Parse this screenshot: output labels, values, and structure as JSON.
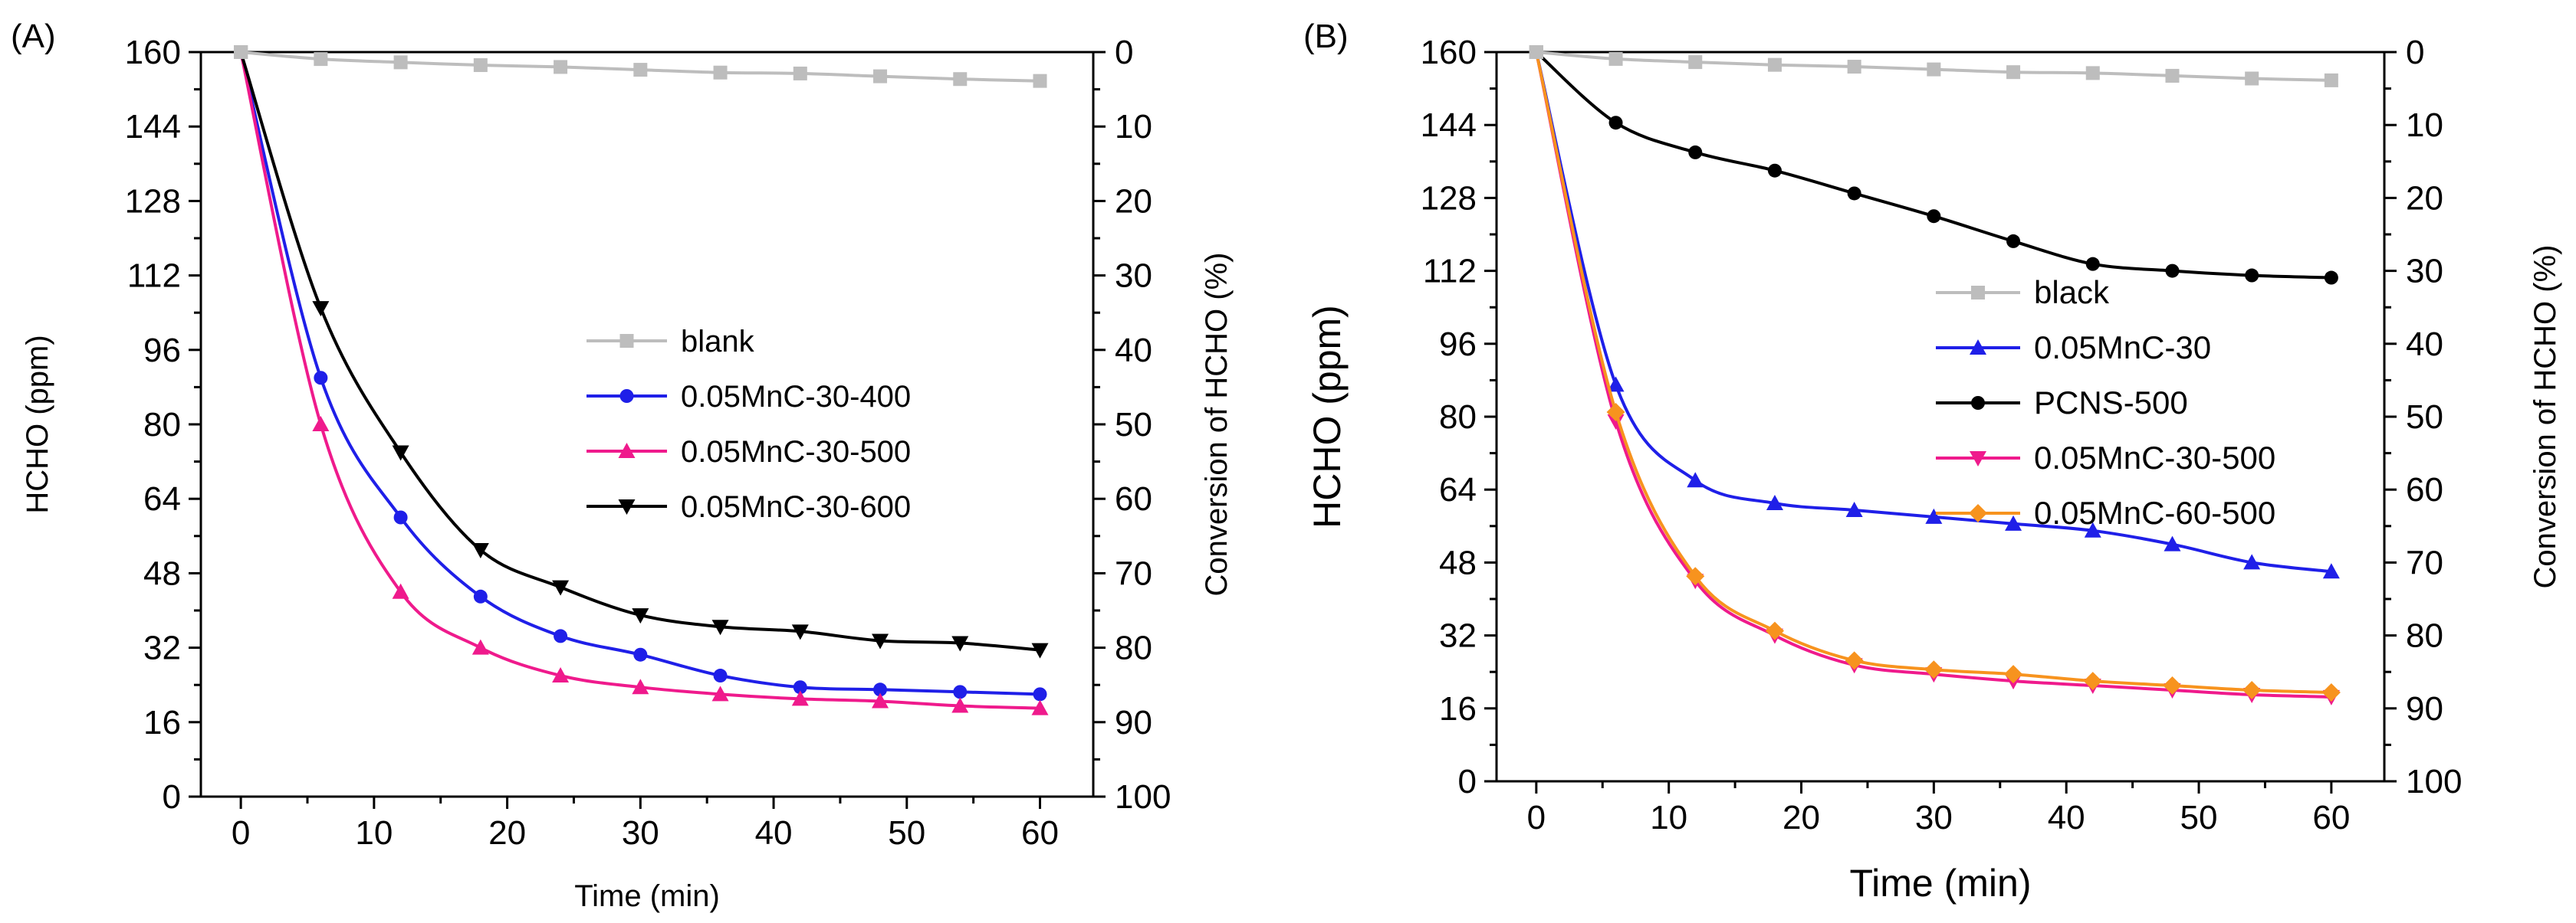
{
  "chart_data": [
    {
      "panel_label": "(A)",
      "type": "line",
      "xlabel": "Time (min)",
      "ylabel": "HCHO (ppm)",
      "y2label": "Conversion of HCHO (%)",
      "xlim": [
        -3,
        64
      ],
      "ylim": [
        0,
        160
      ],
      "y2lim": [
        100,
        0
      ],
      "xticks": [
        0,
        10,
        20,
        30,
        40,
        50,
        60
      ],
      "yticks": [
        0,
        16,
        32,
        48,
        64,
        80,
        96,
        112,
        128,
        144,
        160
      ],
      "y2ticks": [
        0,
        10,
        20,
        30,
        40,
        50,
        60,
        70,
        80,
        90,
        100
      ],
      "legend_position": "center-right",
      "series": [
        {
          "name": "blank",
          "color": "#bdbdbd",
          "marker": "square",
          "x": [
            0,
            6,
            12,
            18,
            24,
            30,
            36,
            42,
            48,
            54,
            60
          ],
          "y": [
            160,
            158.5,
            157.8,
            157.2,
            156.8,
            156.2,
            155.6,
            155.4,
            154.8,
            154.2,
            153.8
          ]
        },
        {
          "name": "0.05MnC-30-400",
          "color": "#1f1fe8",
          "marker": "circle",
          "x": [
            0,
            6,
            12,
            18,
            24,
            30,
            36,
            42,
            48,
            54,
            60
          ],
          "y": [
            160,
            90,
            60,
            43,
            34.5,
            30.5,
            26,
            23.5,
            23,
            22.5,
            22
          ]
        },
        {
          "name": "0.05MnC-30-500",
          "color": "#ef1a8c",
          "marker": "triangle-up",
          "x": [
            0,
            6,
            12,
            18,
            24,
            30,
            36,
            42,
            48,
            54,
            60
          ],
          "y": [
            160,
            80,
            44,
            32,
            26,
            23.5,
            22,
            21,
            20.5,
            19.5,
            19
          ]
        },
        {
          "name": "0.05MnC-30-600",
          "color": "#000000",
          "marker": "triangle-down",
          "x": [
            0,
            6,
            12,
            18,
            24,
            30,
            36,
            42,
            48,
            54,
            60
          ],
          "y": [
            160,
            105,
            74,
            53,
            45,
            39,
            36.5,
            35.5,
            33.5,
            33,
            31.5
          ]
        }
      ]
    },
    {
      "panel_label": "(B)",
      "type": "line",
      "xlabel": "Time (min)",
      "ylabel": "HCHO (ppm)",
      "y2label": "Conversion of HCHO (%)",
      "xlim": [
        -3,
        64
      ],
      "ylim": [
        0,
        160
      ],
      "y2lim": [
        100,
        0
      ],
      "xticks": [
        0,
        10,
        20,
        30,
        40,
        50,
        60
      ],
      "yticks": [
        0,
        16,
        32,
        48,
        64,
        80,
        96,
        112,
        128,
        144,
        160
      ],
      "y2ticks": [
        0,
        10,
        20,
        30,
        40,
        50,
        60,
        70,
        80,
        90,
        100
      ],
      "legend_position": "center",
      "series": [
        {
          "name": "black",
          "color": "#bdbdbd",
          "marker": "square",
          "x": [
            0,
            6,
            12,
            18,
            24,
            30,
            36,
            42,
            48,
            54,
            60
          ],
          "y": [
            160,
            158.5,
            157.8,
            157.2,
            156.8,
            156.2,
            155.6,
            155.4,
            154.8,
            154.2,
            153.8
          ]
        },
        {
          "name": "0.05MnC-30",
          "color": "#1f1fe8",
          "marker": "triangle-up",
          "x": [
            0,
            6,
            12,
            18,
            24,
            30,
            36,
            42,
            48,
            54,
            60
          ],
          "y": [
            160,
            87,
            66,
            61,
            59.5,
            58,
            56.5,
            55,
            52,
            48,
            46
          ]
        },
        {
          "name": "PCNS-500",
          "color": "#000000",
          "marker": "circle",
          "x": [
            0,
            6,
            12,
            18,
            24,
            30,
            36,
            42,
            48,
            54,
            60
          ],
          "y": [
            160,
            144.5,
            138,
            134,
            129,
            124,
            118.5,
            113.5,
            112,
            111,
            110.5
          ]
        },
        {
          "name": "0.05MnC-30-500",
          "color": "#ef1a8c",
          "marker": "triangle-down",
          "x": [
            0,
            6,
            12,
            18,
            24,
            30,
            36,
            42,
            48,
            54,
            60
          ],
          "y": [
            160,
            79,
            44,
            32,
            25.5,
            23.5,
            22,
            21,
            20,
            19,
            18.5
          ]
        },
        {
          "name": "0.05MnC-60-500",
          "color": "#f7931e",
          "marker": "diamond",
          "x": [
            0,
            6,
            12,
            18,
            24,
            30,
            36,
            42,
            48,
            54,
            60
          ],
          "y": [
            160,
            81,
            45,
            33,
            26.5,
            24.5,
            23.5,
            22,
            21,
            20,
            19.5
          ]
        }
      ]
    }
  ]
}
